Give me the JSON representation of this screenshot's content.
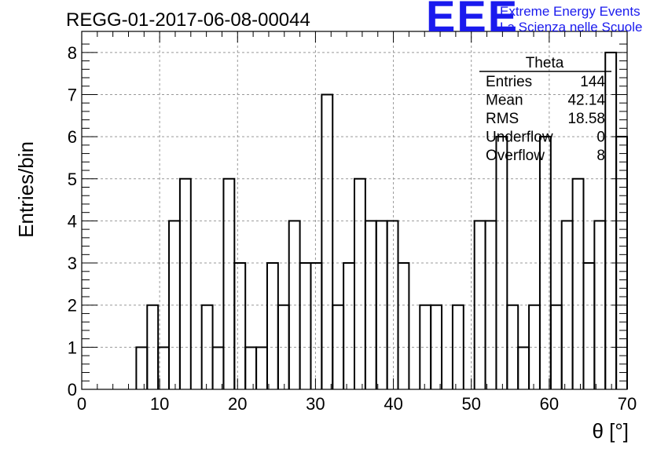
{
  "chart_data": {
    "type": "bar",
    "title": "REGG-01-2017-06-08-00044",
    "xlabel": "θ [°]",
    "ylabel": "Entries/bin",
    "xlim": [
      0,
      70
    ],
    "ylim": [
      0,
      8.5
    ],
    "bin_width": 1.4,
    "bin_start": 0,
    "values": [
      0,
      0,
      0,
      0,
      0,
      1,
      2,
      1,
      4,
      5,
      0,
      2,
      1,
      5,
      3,
      1,
      1,
      3,
      2,
      4,
      3,
      3,
      7,
      2,
      3,
      5,
      4,
      4,
      4,
      3,
      0,
      2,
      2,
      0,
      2,
      0,
      4,
      4,
      6,
      2,
      1,
      2,
      6,
      2,
      4,
      5,
      3,
      4,
      8,
      6
    ],
    "x_ticks": [
      "0",
      "10",
      "20",
      "30",
      "40",
      "50",
      "60",
      "70"
    ],
    "y_ticks": [
      "0",
      "1",
      "2",
      "3",
      "4",
      "5",
      "6",
      "7",
      "8"
    ],
    "grid": true,
    "legend": "none"
  },
  "stats": {
    "name": "Theta",
    "rows": [
      {
        "label": "Entries",
        "value": "144"
      },
      {
        "label": "Mean",
        "value": "42.14"
      },
      {
        "label": "RMS",
        "value": "18.58"
      },
      {
        "label": "Underflow",
        "value": "0"
      },
      {
        "label": "Overflow",
        "value": "8"
      }
    ]
  },
  "logo": {
    "mark": "EEE",
    "line1": "Extreme Energy Events",
    "line2": "La Scienza nelle Scuole",
    "color": "#1a1aee"
  }
}
